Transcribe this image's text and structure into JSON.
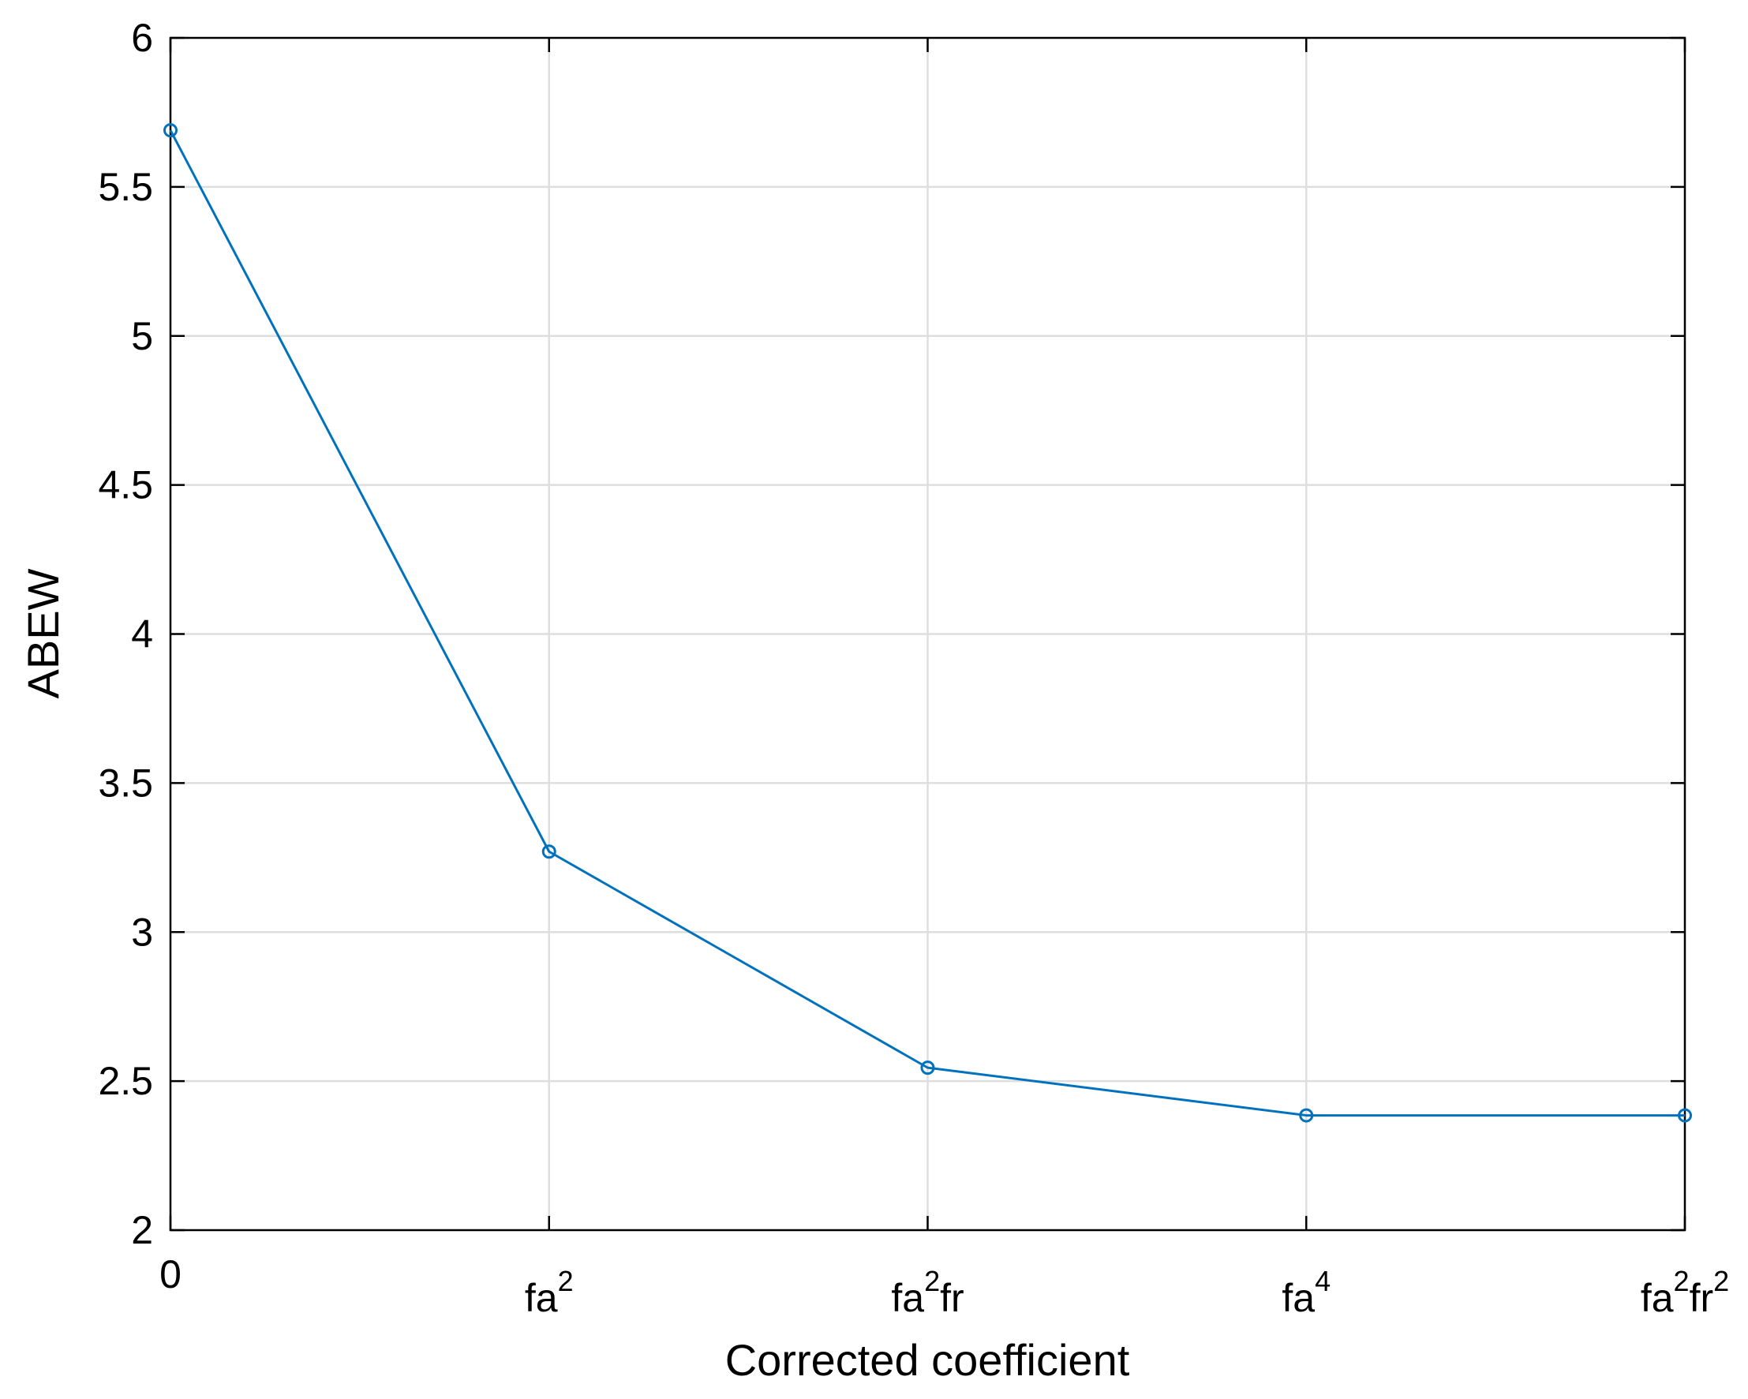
{
  "chart_data": {
    "type": "line",
    "title": "",
    "xlabel": "Corrected coefficient",
    "ylabel": "ABEW",
    "x_ticks": [
      {
        "parts": [
          {
            "t": "0",
            "sup": false
          }
        ]
      },
      {
        "parts": [
          {
            "t": "fa",
            "sup": false
          },
          {
            "t": "2",
            "sup": true
          }
        ]
      },
      {
        "parts": [
          {
            "t": "fa",
            "sup": false
          },
          {
            "t": "2",
            "sup": true
          },
          {
            "t": "fr",
            "sup": false
          }
        ]
      },
      {
        "parts": [
          {
            "t": "fa",
            "sup": false
          },
          {
            "t": "4",
            "sup": true
          }
        ]
      },
      {
        "parts": [
          {
            "t": "fa",
            "sup": false
          },
          {
            "t": "2",
            "sup": true
          },
          {
            "t": "fr",
            "sup": false
          },
          {
            "t": "2",
            "sup": true
          }
        ]
      }
    ],
    "y_ticks": [
      "2",
      "2.5",
      "3",
      "3.5",
      "4",
      "4.5",
      "5",
      "5.5",
      "6"
    ],
    "ylim": [
      2,
      6
    ],
    "grid": true,
    "series": [
      {
        "values": [
          5.69,
          3.27,
          2.545,
          2.385,
          2.385
        ],
        "color": "#0072BD",
        "marker": "circle"
      }
    ]
  }
}
